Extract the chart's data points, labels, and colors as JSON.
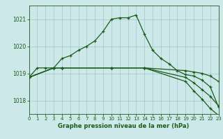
{
  "background_color": "#cce8e8",
  "grid_color": "#aacccc",
  "line_color": "#1a5c1a",
  "title": "Graphe pression niveau de la mer (hPa)",
  "xlim": [
    0,
    23
  ],
  "ylim": [
    1017.5,
    1021.5
  ],
  "yticks": [
    1018,
    1019,
    1020,
    1021
  ],
  "xtick_labels": [
    "0",
    "1",
    "2",
    "3",
    "4",
    "5",
    "6",
    "7",
    "8",
    "9",
    "10",
    "11",
    "12",
    "13",
    "14",
    "15",
    "16",
    "17",
    "18",
    "19",
    "20",
    "21",
    "22",
    "23"
  ],
  "series": [
    {
      "x": [
        0,
        1,
        2,
        3,
        4,
        5,
        6,
        7,
        8,
        9,
        10,
        11,
        12,
        13,
        14,
        15,
        16,
        17,
        18,
        19,
        20,
        21,
        22,
        23
      ],
      "y": [
        1018.85,
        1019.2,
        1019.2,
        1019.2,
        1019.55,
        1019.65,
        1019.85,
        1020.0,
        1020.2,
        1020.55,
        1021.0,
        1021.05,
        1021.05,
        1021.15,
        1020.45,
        1019.85,
        1019.55,
        1019.35,
        1019.1,
        1018.95,
        1018.9,
        1018.75,
        1018.5,
        1017.75
      ]
    },
    {
      "x": [
        0,
        3,
        4,
        10,
        14,
        19,
        20,
        21,
        22,
        23
      ],
      "y": [
        1018.85,
        1019.2,
        1019.2,
        1019.2,
        1019.2,
        1019.1,
        1019.05,
        1019.0,
        1018.9,
        1018.7
      ]
    },
    {
      "x": [
        0,
        3,
        4,
        10,
        14,
        19,
        20,
        21,
        22,
        23
      ],
      "y": [
        1018.85,
        1019.2,
        1019.2,
        1019.2,
        1019.2,
        1018.85,
        1018.65,
        1018.4,
        1018.15,
        1017.8
      ]
    },
    {
      "x": [
        0,
        3,
        4,
        10,
        14,
        19,
        20,
        21,
        22,
        23
      ],
      "y": [
        1018.85,
        1019.2,
        1019.2,
        1019.2,
        1019.2,
        1018.7,
        1018.35,
        1018.05,
        1017.7,
        1017.45
      ]
    }
  ]
}
